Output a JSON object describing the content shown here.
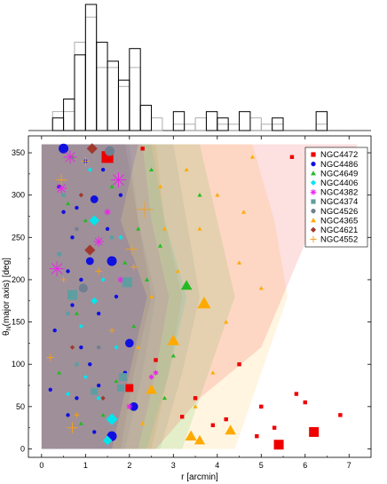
{
  "chart_data": [
    {
      "type": "histogram",
      "x_bin_edges": [
        0,
        0.25,
        0.5,
        0.75,
        1.0,
        1.25,
        1.5,
        1.75,
        2.0,
        2.25,
        2.5,
        2.75,
        3.0,
        3.25,
        3.5,
        3.75,
        4.0,
        4.25,
        4.5,
        4.75,
        5.0,
        5.25,
        5.5,
        5.75,
        6.0,
        6.25,
        6.5
      ],
      "series": [
        {
          "style": "black",
          "counts": [
            0,
            2,
            5,
            12,
            20,
            14,
            11,
            8,
            13,
            4,
            0,
            0,
            3,
            0,
            0,
            3,
            2,
            0,
            3,
            0,
            0,
            2,
            0,
            0,
            0,
            3
          ]
        },
        {
          "style": "gray",
          "counts": [
            0,
            3,
            3,
            14,
            18,
            10,
            10,
            7,
            10,
            4,
            2,
            0,
            1,
            1,
            2,
            0,
            1,
            1,
            0,
            2,
            1,
            1,
            0,
            0,
            0,
            1
          ]
        }
      ]
    },
    {
      "type": "scatter",
      "xlabel": "r [arcmin]",
      "ylabel": "θ_N(major axis) [deg]",
      "xlim": [
        -0.3,
        7.5
      ],
      "ylim": [
        -10,
        370
      ],
      "xticks": [
        0,
        1,
        2,
        3,
        4,
        5,
        6,
        7
      ],
      "yticks": [
        0,
        50,
        100,
        150,
        200,
        250,
        300,
        350
      ],
      "legend_position": "top-right",
      "series": [
        {
          "name": "NGC4472",
          "color": "#ee0000",
          "marker": "square",
          "bands": {
            "x_max": [
              2.6,
              3.6,
              5.0,
              6.3,
              7.2
            ],
            "y": [
              0,
              60,
              120,
              280,
              360
            ]
          },
          "points": [
            [
              1.5,
              345,
              3
            ],
            [
              2.0,
              72,
              2
            ],
            [
              5.4,
              5,
              2.5
            ],
            [
              6.2,
              20,
              2.5
            ],
            [
              5.0,
              50,
              1
            ],
            [
              4.2,
              35,
              1
            ],
            [
              3.5,
              60,
              1
            ],
            [
              5.8,
              65,
              1
            ],
            [
              6.8,
              40,
              1
            ],
            [
              4.5,
              100,
              1
            ],
            [
              5.7,
              345,
              1
            ],
            [
              2.3,
              355,
              1
            ],
            [
              2.6,
              105,
              1
            ],
            [
              4.9,
              15,
              1
            ],
            [
              5.3,
              25,
              1
            ],
            [
              3.9,
              28,
              1
            ],
            [
              6.0,
              55,
              1
            ],
            [
              3.2,
              38,
              1
            ]
          ]
        },
        {
          "name": "NGC4486",
          "color": "#1010e0",
          "marker": "circle",
          "bands": {
            "x_max": [
              1.6,
              2.0,
              2.4,
              1.8,
              2.2
            ],
            "y": [
              0,
              90,
              180,
              270,
              360
            ]
          },
          "points": [
            [
              0.5,
              355,
              2.5
            ],
            [
              1.6,
              15,
              2.5
            ],
            [
              1.6,
              222,
              2.5
            ],
            [
              2.0,
              125,
              2.2
            ],
            [
              2.1,
              50,
              2.2
            ],
            [
              1.2,
              295,
              2
            ],
            [
              1.1,
              222,
              2
            ],
            [
              0.7,
              250,
              1
            ],
            [
              0.9,
              120,
              1
            ],
            [
              0.4,
              310,
              1
            ],
            [
              1.3,
              160,
              1
            ],
            [
              0.8,
              60,
              1
            ],
            [
              0.3,
              140,
              1
            ],
            [
              1.8,
              300,
              1
            ],
            [
              0.6,
              40,
              1
            ],
            [
              1.4,
              330,
              1
            ],
            [
              0.9,
              200,
              1
            ],
            [
              1.1,
              100,
              1
            ],
            [
              0.5,
              280,
              1
            ],
            [
              1.5,
              260,
              1
            ],
            [
              0.2,
              70,
              1
            ],
            [
              1.7,
              180,
              1
            ],
            [
              0.7,
              170,
              1
            ],
            [
              1.2,
              20,
              1
            ],
            [
              0.4,
              230,
              1
            ],
            [
              1.0,
              340,
              1
            ],
            [
              1.9,
              90,
              1
            ],
            [
              0.6,
              210,
              1
            ],
            [
              1.3,
              75,
              1
            ],
            [
              0.8,
              285,
              1
            ]
          ]
        },
        {
          "name": "NGC4649",
          "color": "#22bb22",
          "marker": "triangle",
          "bands": {
            "x_max": [
              3.2,
              3.8,
              4.4,
              4.0,
              3.6
            ],
            "y": [
              0,
              90,
              180,
              270,
              360
            ]
          },
          "points": [
            [
              3.3,
              193,
              2.5
            ],
            [
              2.7,
              240,
              1
            ],
            [
              2.4,
              200,
              1
            ],
            [
              3.6,
              300,
              1
            ],
            [
              2.1,
              145,
              1
            ],
            [
              1.6,
              310,
              1
            ],
            [
              0.8,
              160,
              1
            ],
            [
              1.0,
              270,
              1
            ],
            [
              2.8,
              60,
              1
            ],
            [
              1.9,
              220,
              1
            ],
            [
              0.6,
              290,
              1
            ],
            [
              3.0,
              110,
              1
            ],
            [
              1.2,
              175,
              1
            ],
            [
              0.4,
              90,
              1
            ],
            [
              2.5,
              330,
              1
            ],
            [
              1.7,
              80,
              1
            ],
            [
              0.9,
              30,
              1
            ],
            [
              2.2,
              260,
              1
            ],
            [
              1.4,
              40,
              1
            ],
            [
              0.7,
              345,
              1
            ]
          ]
        },
        {
          "name": "NGC4406",
          "color": "#00e5ee",
          "marker": "diamond",
          "bands": {
            "x_max": [
              2.4,
              2.9,
              3.3,
              2.8,
              2.5
            ],
            "y": [
              0,
              90,
              180,
              270,
              360
            ]
          },
          "points": [
            [
              1.6,
              35,
              2.5
            ],
            [
              1.2,
              270,
              2.2
            ],
            [
              1.5,
              10,
              2
            ],
            [
              1.2,
              175,
              1.5
            ],
            [
              1.3,
              60,
              1
            ],
            [
              1.8,
              250,
              1
            ],
            [
              0.9,
              145,
              1
            ],
            [
              1.1,
              330,
              1
            ],
            [
              1.4,
              200,
              1
            ],
            [
              0.6,
              65,
              1
            ],
            [
              1.0,
              85,
              1
            ],
            [
              1.7,
              120,
              1
            ]
          ]
        },
        {
          "name": "NGC4382",
          "color": "#ee22ee",
          "marker": "star",
          "bands": {
            "x_max": [
              2.2,
              2.6,
              2.9,
              2.5,
              2.3
            ],
            "y": [
              0,
              90,
              180,
              270,
              360
            ]
          },
          "points": [
            [
              0.35,
              213,
              3
            ],
            [
              1.75,
              318,
              3
            ],
            [
              0.65,
              345,
              2.6
            ],
            [
              0.45,
              308,
              2.2
            ],
            [
              1.3,
              245,
              2
            ],
            [
              1.5,
              280,
              1.3
            ],
            [
              2.0,
              50,
              1.2
            ],
            [
              1.8,
              200,
              1.2
            ],
            [
              2.5,
              85,
              1
            ],
            [
              2.6,
              90,
              1
            ]
          ]
        },
        {
          "name": "NGC4374",
          "color": "#5f9ea0",
          "marker": "square",
          "bands": {
            "x_max": [
              2.7,
              3.2,
              3.6,
              3.3,
              3.0
            ],
            "y": [
              0,
              90,
              180,
              270,
              360
            ]
          },
          "points": [
            [
              0.7,
              182,
              2.5
            ],
            [
              1.95,
              197,
              2.5
            ],
            [
              1.85,
              85,
              2
            ],
            [
              1.8,
              72,
              1.8
            ],
            [
              1.2,
              68,
              1.8
            ],
            [
              0.4,
              230,
              1
            ],
            [
              0.8,
              100,
              1
            ],
            [
              0.6,
              160,
              1
            ],
            [
              0.5,
              300,
              1
            ],
            [
              1.6,
              250,
              1
            ]
          ]
        },
        {
          "name": "NGC4526",
          "color": "#708090",
          "marker": "circle",
          "bands": {
            "x_max": [
              1.9,
              2.3,
              2.6,
              2.2,
              2.0
            ],
            "y": [
              0,
              90,
              180,
              270,
              360
            ]
          },
          "points": [
            [
              1.55,
              352,
              2.5
            ],
            [
              0.95,
              190,
              2.3
            ],
            [
              0.8,
              260,
              1
            ],
            [
              1.3,
              120,
              1
            ]
          ]
        },
        {
          "name": "NGC4365",
          "color": "#ffaa00",
          "marker": "triangle",
          "bands": {
            "x_max": [
              4.4,
              5.0,
              5.6,
              5.3,
              4.8
            ],
            "y": [
              0,
              90,
              180,
              270,
              360
            ]
          },
          "points": [
            [
              3.7,
              172,
              3
            ],
            [
              3.0,
              128,
              2.7
            ],
            [
              2.5,
              70,
              2.5
            ],
            [
              3.4,
              15,
              2.6
            ],
            [
              3.6,
              10,
              2.4
            ],
            [
              4.3,
              22,
              2.5
            ],
            [
              2.8,
              260,
              1
            ],
            [
              3.3,
              330,
              1
            ],
            [
              4.0,
              300,
              1
            ],
            [
              4.5,
              220,
              1
            ],
            [
              2.5,
              180,
              1
            ],
            [
              3.6,
              260,
              1
            ],
            [
              3.9,
              90,
              1
            ],
            [
              2.2,
              120,
              1
            ],
            [
              4.8,
              345,
              1
            ],
            [
              3.1,
              210,
              1
            ],
            [
              4.2,
              150,
              1
            ],
            [
              2.7,
              310,
              1
            ],
            [
              3.5,
              50,
              1
            ],
            [
              4.6,
              280,
              1
            ],
            [
              2.3,
              30,
              1
            ],
            [
              5.0,
              190,
              1
            ]
          ]
        },
        {
          "name": "NGC4621",
          "color": "#a0382e",
          "marker": "diamond",
          "bands": {
            "x_max": [
              1.8,
              2.1,
              2.5,
              2.2,
              1.9
            ],
            "y": [
              0,
              90,
              180,
              270,
              360
            ]
          },
          "points": [
            [
              1.15,
              355,
              2.3
            ],
            [
              1.1,
              235,
              2.3
            ],
            [
              0.7,
              120,
              1
            ],
            [
              1.4,
              60,
              1
            ],
            [
              0.9,
              300,
              1
            ]
          ]
        },
        {
          "name": "NGC4552",
          "color": "#f0a020",
          "marker": "plus",
          "bands": {
            "x_max": [
              2.5,
              2.9,
              3.2,
              2.8,
              2.6
            ],
            "y": [
              0,
              90,
              180,
              270,
              360
            ]
          },
          "points": [
            [
              2.35,
              283,
              3
            ],
            [
              2.05,
              236,
              2.2
            ],
            [
              0.45,
              318,
              2
            ],
            [
              0.7,
              25,
              2
            ],
            [
              1.0,
              340,
              1.5
            ],
            [
              0.2,
              108,
              1.3
            ],
            [
              1.3,
              210,
              1.3
            ],
            [
              2.1,
              215,
              1.2
            ],
            [
              0.5,
              200,
              1
            ],
            [
              1.6,
              140,
              1
            ],
            [
              0.8,
              40,
              1
            ]
          ]
        }
      ]
    }
  ]
}
